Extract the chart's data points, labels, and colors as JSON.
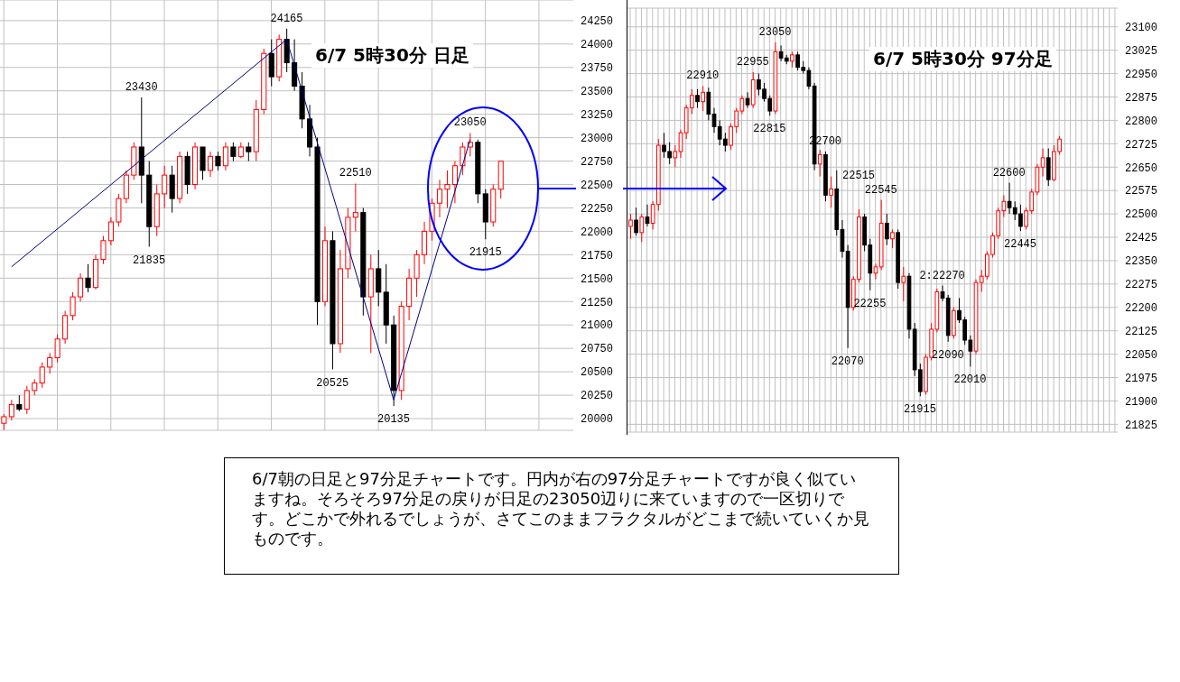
{
  "chart_data": [
    {
      "type": "candlestick",
      "title": "6/7 5時30分 日足",
      "categories": [
        null,
        null,
        null,
        null,
        null,
        null,
        null,
        null,
        null,
        null,
        null,
        null,
        null,
        null,
        null,
        null,
        null,
        null,
        null,
        null,
        null,
        null,
        null,
        null,
        null,
        null,
        null,
        null,
        null,
        null,
        null,
        null,
        null,
        null,
        null,
        null,
        null,
        null,
        null,
        null,
        null,
        null,
        null,
        null,
        null,
        null,
        null,
        null,
        null,
        null,
        null,
        null,
        null,
        null,
        null,
        null,
        null,
        null,
        null,
        null,
        null,
        null,
        null,
        null,
        null,
        null,
        null,
        null,
        null,
        null,
        null,
        null,
        null,
        null,
        null
      ],
      "ohlc": [
        [
          19950,
          20050,
          19880,
          20020
        ],
        [
          20020,
          20200,
          19980,
          20150
        ],
        [
          20150,
          20250,
          20080,
          20100
        ],
        [
          20100,
          20350,
          20050,
          20300
        ],
        [
          20300,
          20420,
          20250,
          20380
        ],
        [
          20380,
          20600,
          20330,
          20550
        ],
        [
          20550,
          20700,
          20480,
          20650
        ],
        [
          20650,
          20900,
          20600,
          20850
        ],
        [
          20850,
          21150,
          20800,
          21100
        ],
        [
          21100,
          21350,
          21050,
          21300
        ],
        [
          21300,
          21550,
          21250,
          21500
        ],
        [
          21500,
          21650,
          21350,
          21400
        ],
        [
          21400,
          21750,
          21380,
          21700
        ],
        [
          21700,
          21950,
          21650,
          21900
        ],
        [
          21900,
          22150,
          21850,
          22100
        ],
        [
          22100,
          22400,
          22050,
          22350
        ],
        [
          22350,
          22650,
          22300,
          22600
        ],
        [
          22600,
          22950,
          22550,
          22900
        ],
        [
          22900,
          23430,
          22300,
          22600
        ],
        [
          22600,
          22750,
          21835,
          22050
        ],
        [
          22050,
          22500,
          21950,
          22400
        ],
        [
          22400,
          22700,
          22250,
          22600
        ],
        [
          22600,
          22700,
          22200,
          22350
        ],
        [
          22350,
          22850,
          22300,
          22800
        ],
        [
          22800,
          22850,
          22400,
          22500
        ],
        [
          22500,
          22950,
          22450,
          22900
        ],
        [
          22900,
          22900,
          22550,
          22650
        ],
        [
          22650,
          22850,
          22580,
          22800
        ],
        [
          22800,
          22850,
          22650,
          22700
        ],
        [
          22700,
          22950,
          22650,
          22900
        ],
        [
          22900,
          22950,
          22750,
          22800
        ],
        [
          22800,
          22950,
          22780,
          22900
        ],
        [
          22900,
          22950,
          22750,
          22850
        ],
        [
          22850,
          23400,
          22750,
          23300
        ],
        [
          23300,
          23950,
          23250,
          23900
        ],
        [
          23900,
          24050,
          23550,
          23650
        ],
        [
          23650,
          24100,
          23600,
          24050
        ],
        [
          24050,
          24165,
          23700,
          23800
        ],
        [
          23800,
          24050,
          23500,
          23550
        ],
        [
          23550,
          23700,
          23100,
          23200
        ],
        [
          23200,
          23350,
          22800,
          22900
        ],
        [
          22900,
          23000,
          21000,
          21250
        ],
        [
          21250,
          22050,
          21200,
          21900
        ],
        [
          21900,
          22000,
          20525,
          20800
        ],
        [
          20800,
          21800,
          20700,
          21600
        ],
        [
          21600,
          22250,
          21500,
          22150
        ],
        [
          22150,
          22510,
          22000,
          22200
        ],
        [
          22200,
          22250,
          21100,
          21300
        ],
        [
          21300,
          21750,
          20700,
          21600
        ],
        [
          21600,
          21800,
          21200,
          21350
        ],
        [
          21350,
          21650,
          20800,
          21000
        ],
        [
          21000,
          21100,
          20135,
          20300
        ],
        [
          20300,
          21250,
          20200,
          21200
        ],
        [
          21200,
          21600,
          21050,
          21500
        ],
        [
          21500,
          21800,
          21300,
          21750
        ],
        [
          21750,
          22100,
          21650,
          22000
        ],
        [
          22000,
          22350,
          21900,
          22300
        ],
        [
          22300,
          22550,
          22150,
          22450
        ],
        [
          22450,
          22650,
          22250,
          22500
        ],
        [
          22500,
          22750,
          22300,
          22700
        ],
        [
          22700,
          22950,
          22600,
          22900
        ],
        [
          22900,
          23050,
          22800,
          22950
        ],
        [
          22950,
          22980,
          22300,
          22400
        ],
        [
          22400,
          22450,
          21915,
          22100
        ],
        [
          22100,
          22500,
          22050,
          22450
        ],
        [
          22450,
          22750,
          22350,
          22750
        ],
        null,
        null,
        null,
        null,
        null,
        null,
        null,
        null,
        null
      ],
      "colors": [
        "#ff0000",
        "#ff0000",
        "#000000",
        "#ff0000",
        "#ff0000",
        "#ff0000",
        "#ff0000",
        "#ff0000",
        "#ff0000",
        "#ff0000",
        "#ff0000",
        "#000000",
        "#ff0000",
        "#ff0000",
        "#ff0000",
        "#ff0000",
        "#ff0000",
        "#ff0000",
        "#000000",
        "#000000",
        "#ff0000",
        "#ff0000",
        "#000000",
        "#ff0000",
        "#000000",
        "#ff0000",
        "#000000",
        "#ff0000",
        "#000000",
        "#ff0000",
        "#000000",
        "#ff0000",
        "#000000",
        "#ff0000",
        "#ff0000",
        "#000000",
        "#ff0000",
        "#000000",
        "#000000",
        "#000000",
        "#000000",
        "#000000",
        "#ff0000",
        "#000000",
        "#ff0000",
        "#ff0000",
        "#ff0000",
        "#000000",
        "#ff0000",
        "#000000",
        "#000000",
        "#000000",
        "#ff0000",
        "#ff0000",
        "#ff0000",
        "#ff0000",
        "#ff0000",
        "#ff0000",
        "#ff0000",
        "#ff0000",
        "#ff0000",
        "#ff0000",
        "#000000",
        "#000000",
        "#ff0000",
        "#ff0000",
        null,
        null,
        null,
        null,
        null,
        null,
        null,
        null,
        null
      ],
      "series": [
        {
          "type": "line",
          "color": "#000080",
          "values": [
            null,
            21620,
            null,
            null,
            null,
            null,
            null,
            null,
            null,
            null,
            null,
            null,
            null,
            null,
            null,
            null,
            null,
            null,
            null,
            null,
            null,
            null,
            null,
            null,
            null,
            null,
            null,
            null,
            null,
            null,
            null,
            null,
            null,
            null,
            null,
            null,
            null,
            24050,
            null,
            null,
            null,
            null,
            null,
            null,
            null,
            null,
            null,
            null,
            null,
            null,
            null,
            20200,
            null,
            null,
            null,
            null,
            null,
            null,
            null,
            null,
            null,
            22980,
            null,
            null,
            null,
            null,
            null,
            null,
            null,
            null,
            null,
            null,
            null,
            null,
            null
          ]
        }
      ],
      "ylim": [
        19875,
        24470
      ],
      "yticks": [
        20000,
        20250,
        20500,
        20750,
        21000,
        21250,
        21500,
        21750,
        22000,
        22250,
        22500,
        22750,
        23000,
        23250,
        23500,
        23750,
        24000,
        24250
      ],
      "grid": true,
      "tick_labels": "y",
      "annotations": [
        {
          "text": "24165",
          "y": 24165
        },
        {
          "text": "23430",
          "y": 23430
        },
        {
          "text": "21835",
          "y": 21835
        },
        {
          "text": "22510",
          "y": 22510
        },
        {
          "text": "20525",
          "y": 20525
        },
        {
          "text": "20135",
          "y": 20135
        },
        {
          "text": "23050",
          "y": 23050
        },
        {
          "text": "21915",
          "y": 21915
        },
        "6/7朝の日足と97分足チャートです。円内が右の97分足チャートですが良く似ていますね。そろそろ97分足の戻りが日足の23050辺りに来ていますので一区切りです。どこかで外れるでしょうが、さてこのままフラクタルがどこまで続いていくか見ものです。"
      ]
    },
    {
      "type": "candlestick",
      "title": "6/7 5時30分 97分足",
      "categories": [
        null,
        null,
        null,
        null,
        null,
        null,
        null,
        null,
        null,
        null,
        null,
        null,
        null,
        null,
        null,
        null,
        null,
        null,
        null,
        null,
        null,
        null,
        null,
        null,
        null,
        null,
        null,
        null,
        null,
        null,
        null,
        null,
        null,
        null,
        null,
        null,
        null,
        null,
        null,
        null,
        null,
        null,
        null,
        null,
        null,
        null,
        null,
        null,
        null,
        null,
        null,
        null,
        null,
        null,
        null,
        null,
        null,
        null,
        null,
        null,
        null,
        null,
        null,
        null,
        null,
        null,
        null,
        null,
        null,
        null,
        null,
        null,
        null,
        null,
        null,
        null,
        null,
        null,
        null,
        null,
        null,
        null,
        null,
        null,
        null,
        null,
        null,
        null
      ],
      "ohlc": [
        [
          22460,
          22500,
          22420,
          22480
        ],
        [
          22480,
          22520,
          22430,
          22440
        ],
        [
          22440,
          22500,
          22410,
          22490
        ],
        [
          22490,
          22530,
          22460,
          22470
        ],
        [
          22470,
          22540,
          22450,
          22530
        ],
        [
          22530,
          22740,
          22510,
          22720
        ],
        [
          22720,
          22760,
          22680,
          22700
        ],
        [
          22700,
          22730,
          22660,
          22680
        ],
        [
          22680,
          22720,
          22650,
          22700
        ],
        [
          22700,
          22770,
          22680,
          22760
        ],
        [
          22760,
          22850,
          22740,
          22840
        ],
        [
          22840,
          22900,
          22820,
          22880
        ],
        [
          22880,
          22900,
          22840,
          22860
        ],
        [
          22860,
          22910,
          22830,
          22890
        ],
        [
          22890,
          22905,
          22800,
          22820
        ],
        [
          22820,
          22840,
          22760,
          22780
        ],
        [
          22780,
          22800,
          22720,
          22740
        ],
        [
          22740,
          22760,
          22700,
          22720
        ],
        [
          22720,
          22790,
          22705,
          22780
        ],
        [
          22780,
          22840,
          22760,
          22830
        ],
        [
          22830,
          22880,
          22820,
          22870
        ],
        [
          22870,
          22890,
          22840,
          22850
        ],
        [
          22850,
          22955,
          22840,
          22930
        ],
        [
          22930,
          22950,
          22880,
          22900
        ],
        [
          22900,
          22920,
          22860,
          22870
        ],
        [
          22870,
          22880,
          22815,
          22830
        ],
        [
          22830,
          23050,
          22820,
          23020
        ],
        [
          23020,
          23040,
          22990,
          23000
        ],
        [
          23000,
          23010,
          22980,
          22990
        ],
        [
          22990,
          23020,
          22970,
          23010
        ],
        [
          23010,
          23020,
          22960,
          22970
        ],
        [
          22970,
          22990,
          22950,
          22960
        ],
        [
          22960,
          22970,
          22900,
          22910
        ],
        [
          22910,
          22920,
          22640,
          22660
        ],
        [
          22660,
          22705,
          22620,
          22690
        ],
        [
          22690,
          22700,
          22540,
          22560
        ],
        [
          22560,
          22620,
          22520,
          22580
        ],
        [
          22580,
          22640,
          22430,
          22450
        ],
        [
          22450,
          22480,
          22360,
          22380
        ],
        [
          22380,
          22400,
          22070,
          22200
        ],
        [
          22200,
          22300,
          22190,
          22290
        ],
        [
          22290,
          22515,
          22280,
          22490
        ],
        [
          22490,
          22500,
          22380,
          22400
        ],
        [
          22400,
          22420,
          22255,
          22310
        ],
        [
          22310,
          22340,
          22290,
          22330
        ],
        [
          22330,
          22545,
          22320,
          22470
        ],
        [
          22470,
          22500,
          22400,
          22420
        ],
        [
          22420,
          22450,
          22390,
          22440
        ],
        [
          22440,
          22450,
          22260,
          22280
        ],
        [
          22280,
          22330,
          22220,
          22300
        ],
        [
          22300,
          22310,
          22100,
          22130
        ],
        [
          22130,
          22150,
          21980,
          22000
        ],
        [
          22000,
          22020,
          21915,
          21930
        ],
        [
          21930,
          22050,
          21920,
          22040
        ],
        [
          22040,
          22150,
          22030,
          22130
        ],
        [
          22130,
          22260,
          22120,
          22250
        ],
        [
          22250,
          22270,
          22220,
          22230
        ],
        [
          22230,
          22240,
          22090,
          22110
        ],
        [
          22110,
          22200,
          22100,
          22190
        ],
        [
          22190,
          22230,
          22150,
          22160
        ],
        [
          22160,
          22170,
          22080,
          22095
        ],
        [
          22095,
          22110,
          22010,
          22060
        ],
        [
          22060,
          22290,
          22050,
          22280
        ],
        [
          22280,
          22320,
          22250,
          22300
        ],
        [
          22300,
          22380,
          22290,
          22370
        ],
        [
          22370,
          22440,
          22360,
          22430
        ],
        [
          22430,
          22520,
          22420,
          22510
        ],
        [
          22510,
          22560,
          22490,
          22540
        ],
        [
          22540,
          22600,
          22500,
          22520
        ],
        [
          22520,
          22540,
          22480,
          22500
        ],
        [
          22500,
          22530,
          22445,
          22460
        ],
        [
          22460,
          22520,
          22450,
          22510
        ],
        [
          22510,
          22580,
          22500,
          22570
        ],
        [
          22570,
          22660,
          22560,
          22650
        ],
        [
          22650,
          22710,
          22620,
          22680
        ],
        [
          22680,
          22710,
          22590,
          22610
        ],
        [
          22610,
          22720,
          22605,
          22700
        ],
        [
          22700,
          22750,
          22690,
          22740
        ],
        null,
        null,
        null,
        null,
        null,
        null,
        null,
        null,
        null,
        null
      ],
      "colors": [
        "#ff0000",
        "#000000",
        "#ff0000",
        "#000000",
        "#ff0000",
        "#ff0000",
        "#000000",
        "#000000",
        "#ff0000",
        "#ff0000",
        "#ff0000",
        "#ff0000",
        "#000000",
        "#ff0000",
        "#000000",
        "#000000",
        "#000000",
        "#000000",
        "#ff0000",
        "#ff0000",
        "#ff0000",
        "#000000",
        "#ff0000",
        "#000000",
        "#000000",
        "#000000",
        "#ff0000",
        "#000000",
        "#000000",
        "#ff0000",
        "#000000",
        "#000000",
        "#000000",
        "#000000",
        "#ff0000",
        "#000000",
        "#ff0000",
        "#000000",
        "#000000",
        "#000000",
        "#ff0000",
        "#ff0000",
        "#000000",
        "#000000",
        "#ff0000",
        "#ff0000",
        "#000000",
        "#ff0000",
        "#000000",
        "#ff0000",
        "#000000",
        "#000000",
        "#000000",
        "#ff0000",
        "#ff0000",
        "#ff0000",
        "#000000",
        "#000000",
        "#ff0000",
        "#000000",
        "#000000",
        "#000000",
        "#ff0000",
        "#ff0000",
        "#ff0000",
        "#ff0000",
        "#ff0000",
        "#ff0000",
        "#000000",
        "#000000",
        "#000000",
        "#ff0000",
        "#ff0000",
        "#ff0000",
        "#ff0000",
        "#000000",
        "#ff0000",
        "#ff0000",
        null,
        null,
        null,
        null,
        null,
        null,
        null,
        null,
        null,
        null
      ],
      "ylim": [
        21800,
        23160
      ],
      "yticks": [
        21825,
        21900,
        21975,
        22050,
        22125,
        22200,
        22275,
        22350,
        22425,
        22500,
        22575,
        22650,
        22725,
        22800,
        22875,
        22950,
        23025,
        23100
      ],
      "grid": true,
      "tick_labels": "y",
      "annotations": [
        {
          "text": "22910",
          "y": 22910
        },
        {
          "text": "22955",
          "y": 22955
        },
        {
          "text": "22815",
          "y": 22815
        },
        {
          "text": "23050",
          "y": 23050
        },
        {
          "text": "22700",
          "y": 22700
        },
        {
          "text": "22545",
          "y": 22545
        },
        {
          "text": "22515",
          "y": 22515
        },
        {
          "text": "22255",
          "y": 22255
        },
        {
          "text": "22070",
          "y": 22070
        },
        {
          "text": "2:22270",
          "y": 22270
        },
        {
          "text": "22090",
          "y": 22090
        },
        {
          "text": "22010",
          "y": 22010
        },
        {
          "text": "21915",
          "y": 21915
        },
        {
          "text": "22600",
          "y": 22600
        },
        {
          "text": "22445",
          "y": 22445
        }
      ]
    }
  ]
}
